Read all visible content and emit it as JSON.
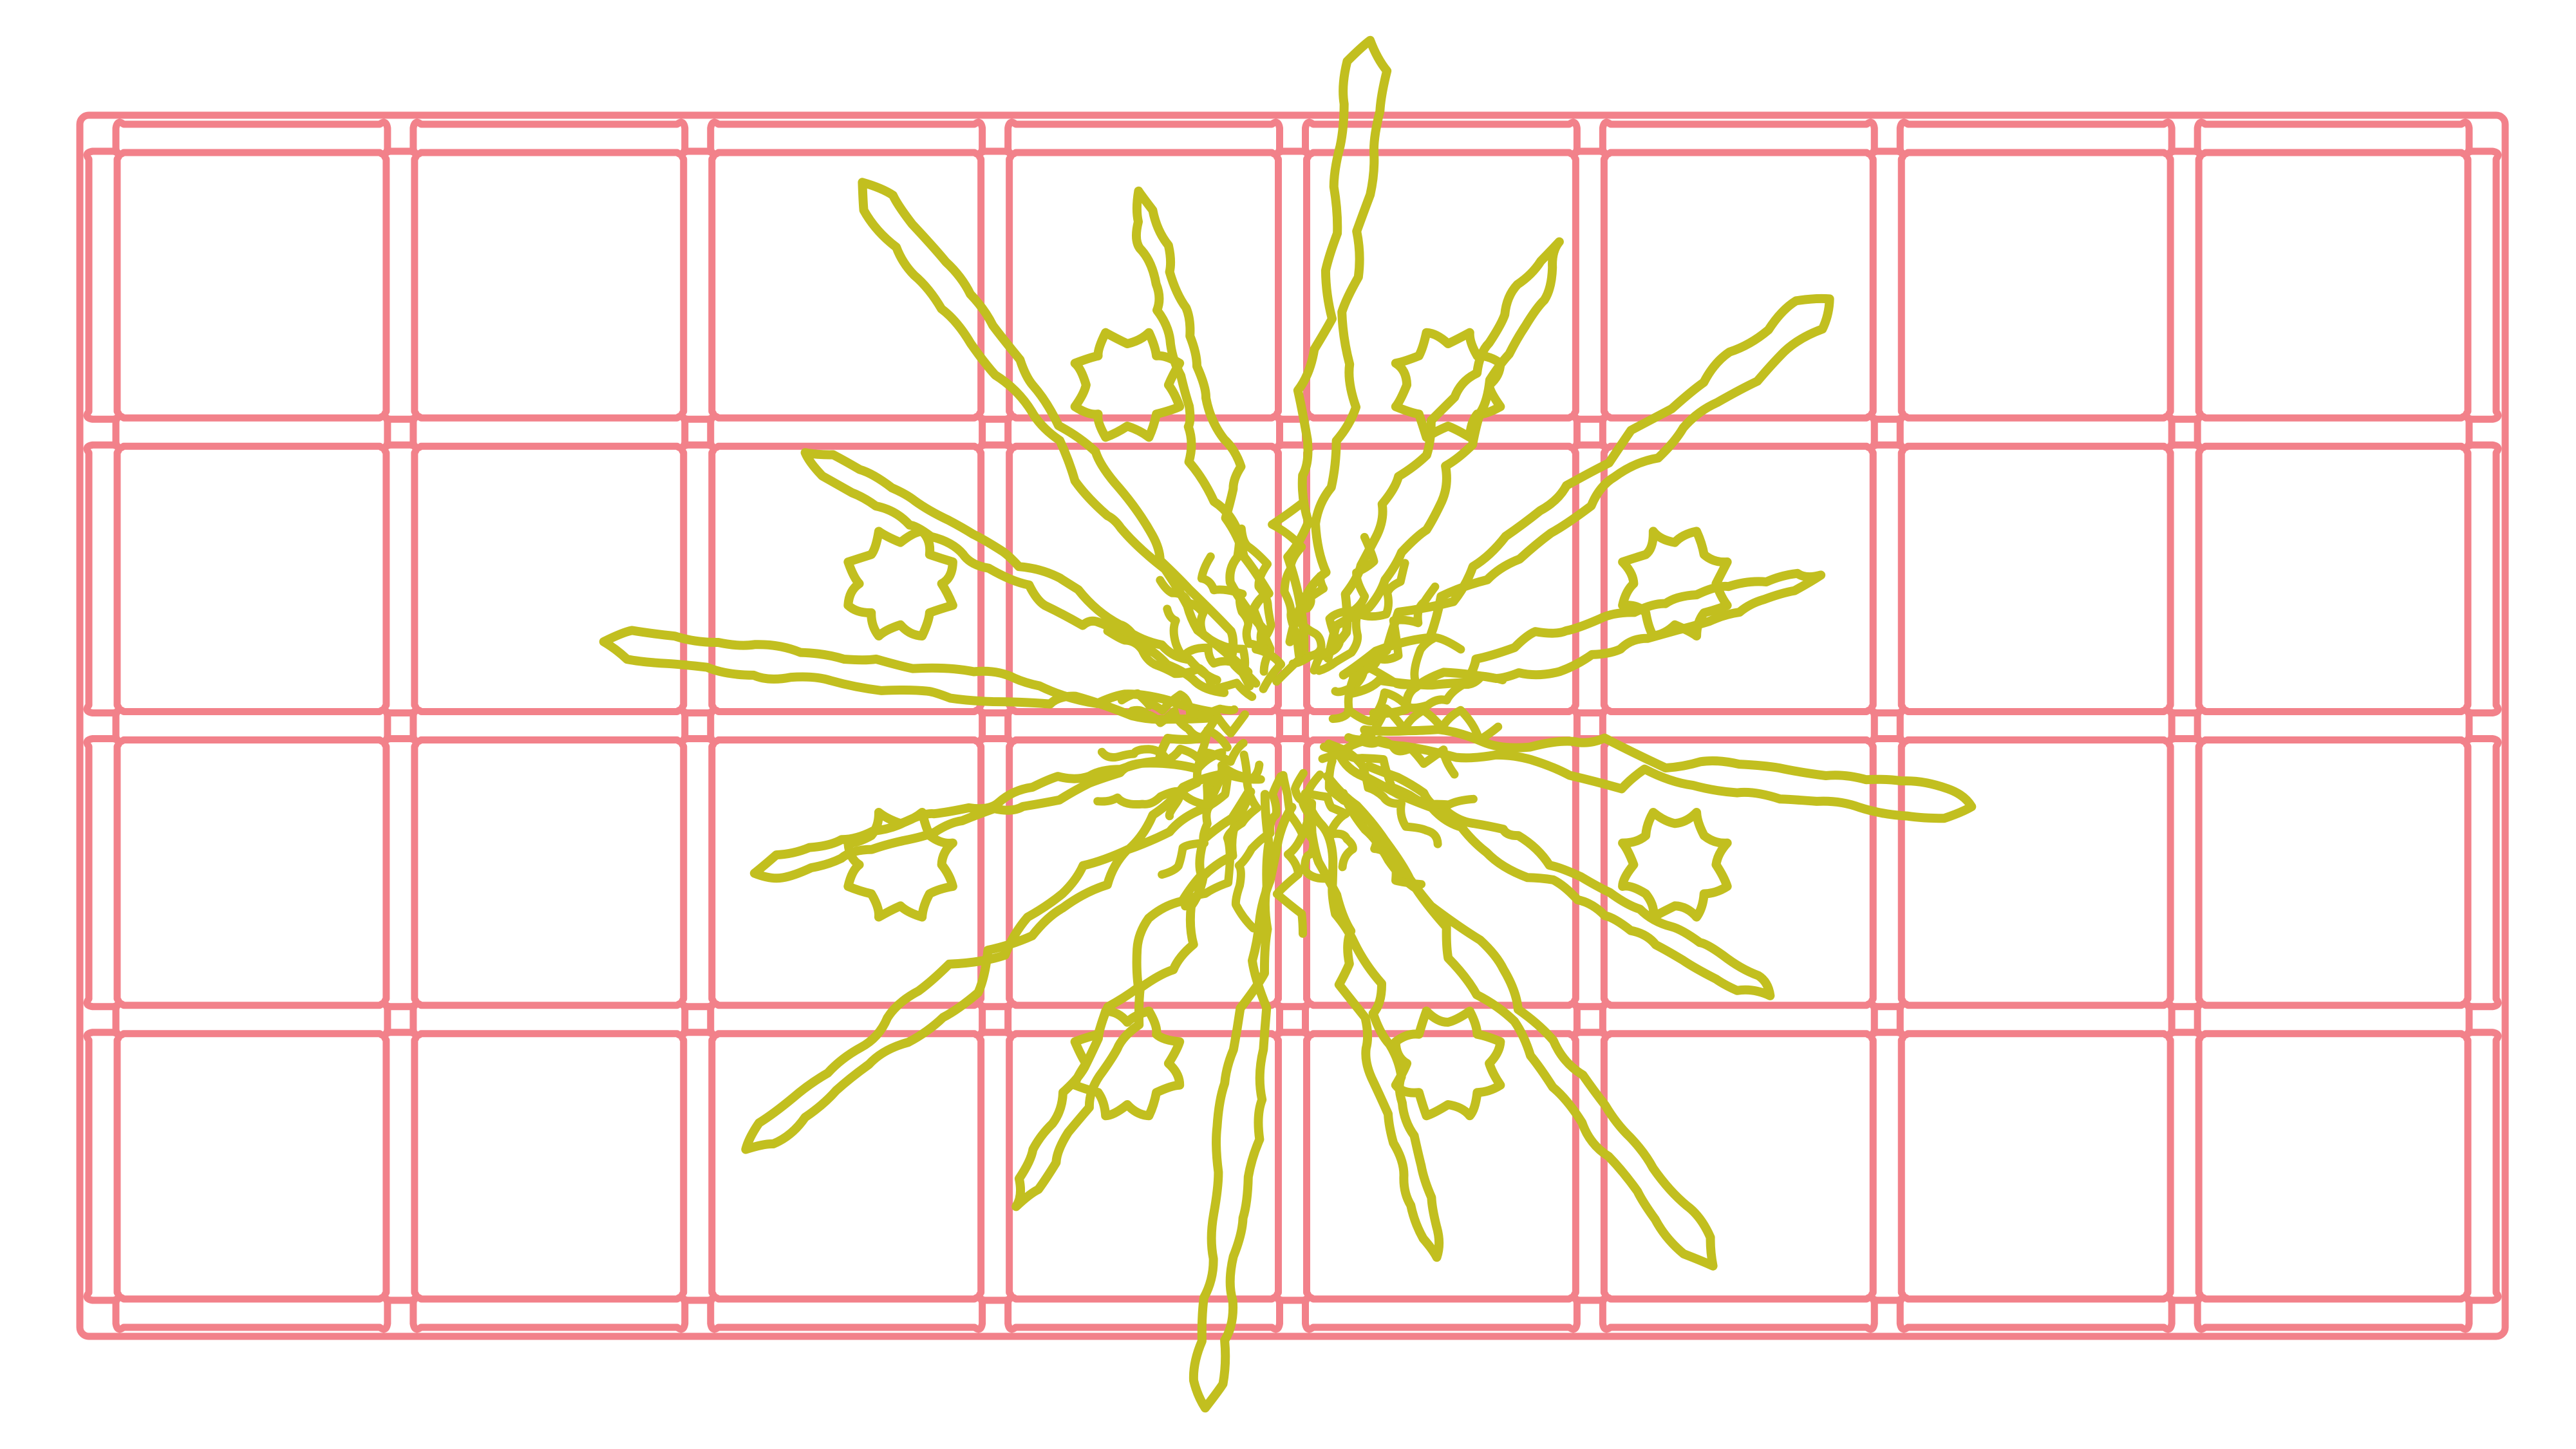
{
  "canvas": {
    "background_color": "#ffffff"
  },
  "grid": {
    "columns": 8,
    "rows": 4,
    "color": "#f2818a",
    "style": "double-outline"
  },
  "flower": {
    "color": "#c2bf1f",
    "petals": 16,
    "rosettes": 8,
    "style": "wavy-outline"
  }
}
